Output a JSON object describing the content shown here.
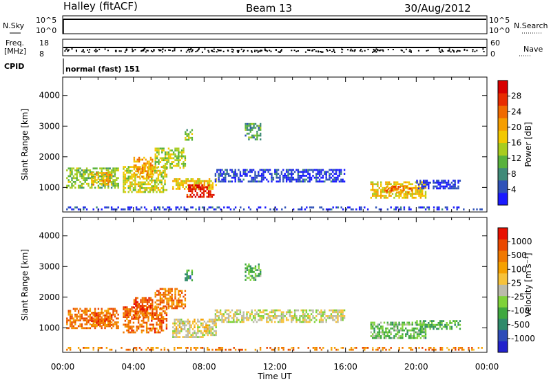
{
  "header": {
    "station": "Halley (fitACF)",
    "beam": "Beam 13",
    "date": "30/Aug/2012"
  },
  "panel_labels": {
    "nsky": "N.Sky",
    "nsearch": "N.Search",
    "freq_line1": "Freq.",
    "freq_line2": "[MHz]",
    "nave": "Nave",
    "cpid": "CPID",
    "cpid_value": "normal (fast) 151",
    "noise_tick_top": "10^5",
    "noise_tick_bottom": "10^0",
    "freq_tick_top": "18",
    "freq_tick_bottom": "8",
    "nave_tick_top": "60",
    "nave_tick_bottom": "0"
  },
  "chart_data": [
    {
      "type": "heatmap",
      "name": "power",
      "ylabel": "Slant Range [km]",
      "xlabel": "Time UT",
      "x_ticks": [
        "00:00",
        "04:00",
        "08:00",
        "12:00",
        "16:00",
        "20:00",
        "00:00"
      ],
      "x_hours": [
        0,
        4,
        8,
        12,
        16,
        20,
        24
      ],
      "y_ticks": [
        1000,
        2000,
        3000,
        4000
      ],
      "ylim": [
        200,
        4600
      ],
      "xlim": [
        0,
        24
      ],
      "colorbar": {
        "label": "Power [dB]",
        "ticks": [
          "4",
          "8",
          "12",
          "16",
          "20",
          "24",
          "28"
        ],
        "colors": [
          "#1a1aff",
          "#2f52b8",
          "#3f8a78",
          "#58b23c",
          "#a8cc1e",
          "#f2c800",
          "#f59e00",
          "#f06a00",
          "#e82c00",
          "#d80000"
        ]
      },
      "features": [
        {
          "t0": 0.2,
          "t1": 3.2,
          "r0": 900,
          "r1": 1650,
          "level": 0.4
        },
        {
          "t0": 1.6,
          "t1": 2.9,
          "r0": 1000,
          "r1": 1500,
          "level": 0.6
        },
        {
          "t0": 3.4,
          "t1": 6.0,
          "r0": 800,
          "r1": 1700,
          "level": 0.5
        },
        {
          "t0": 4.0,
          "t1": 5.2,
          "r0": 1300,
          "r1": 2000,
          "level": 0.65
        },
        {
          "t0": 5.2,
          "t1": 7.0,
          "r0": 1600,
          "r1": 2300,
          "level": 0.45
        },
        {
          "t0": 6.2,
          "t1": 8.8,
          "r0": 900,
          "r1": 1300,
          "level": 0.55
        },
        {
          "t0": 7.0,
          "t1": 8.6,
          "r0": 650,
          "r1": 1100,
          "level": 0.9
        },
        {
          "t0": 6.9,
          "t1": 7.4,
          "r0": 2500,
          "r1": 2900,
          "level": 0.4
        },
        {
          "t0": 8.6,
          "t1": 16.0,
          "r0": 1100,
          "r1": 1600,
          "level": 0.1
        },
        {
          "t0": 10.3,
          "t1": 11.3,
          "r0": 2500,
          "r1": 3100,
          "level": 0.3
        },
        {
          "t0": 17.4,
          "t1": 20.6,
          "r0": 600,
          "r1": 1200,
          "level": 0.55
        },
        {
          "t0": 18.2,
          "t1": 19.8,
          "r0": 750,
          "r1": 1050,
          "level": 0.75
        },
        {
          "t0": 20.0,
          "t1": 22.6,
          "r0": 900,
          "r1": 1250,
          "level": 0.08
        },
        {
          "t0": 0.2,
          "t1": 23.8,
          "r0": 250,
          "r1": 380,
          "level": 0.1
        }
      ]
    },
    {
      "type": "heatmap",
      "name": "velocity",
      "ylabel": "Slant Range [km]",
      "xlabel": "Time UT",
      "x_ticks": [
        "00:00",
        "04:00",
        "08:00",
        "12:00",
        "16:00",
        "20:00",
        "00:00"
      ],
      "x_hours": [
        0,
        4,
        8,
        12,
        16,
        20,
        24
      ],
      "y_ticks": [
        1000,
        2000,
        3000,
        4000
      ],
      "ylim": [
        200,
        4600
      ],
      "xlim": [
        0,
        24
      ],
      "colorbar": {
        "label": "Velocity [m s⁻¹]",
        "ticks": [
          "1000",
          "500",
          "100",
          "25",
          "-25",
          "-100",
          "-500",
          "-1000"
        ],
        "colors": [
          "#2222cc",
          "#2e4cb8",
          "#2f8a6a",
          "#3fa83f",
          "#7fd23a",
          "#bbbbaa",
          "#f6c23a",
          "#f5a000",
          "#f07800",
          "#ea4800",
          "#e81000"
        ]
      },
      "features": [
        {
          "t0": 0.2,
          "t1": 3.2,
          "r0": 900,
          "r1": 1650,
          "level": 0.78
        },
        {
          "t0": 1.6,
          "t1": 2.9,
          "r0": 1000,
          "r1": 1500,
          "level": 0.82
        },
        {
          "t0": 3.4,
          "t1": 6.0,
          "r0": 800,
          "r1": 1700,
          "level": 0.8
        },
        {
          "t0": 4.0,
          "t1": 5.2,
          "r0": 1300,
          "r1": 2000,
          "level": 0.84
        },
        {
          "t0": 5.2,
          "t1": 7.0,
          "r0": 1600,
          "r1": 2300,
          "level": 0.78
        },
        {
          "t0": 6.2,
          "t1": 8.8,
          "r0": 650,
          "r1": 1300,
          "level": 0.55
        },
        {
          "t0": 6.9,
          "t1": 7.4,
          "r0": 2500,
          "r1": 2900,
          "level": 0.3
        },
        {
          "t0": 8.6,
          "t1": 16.0,
          "r0": 1100,
          "r1": 1600,
          "level": 0.5
        },
        {
          "t0": 10.3,
          "t1": 11.3,
          "r0": 2500,
          "r1": 3100,
          "level": 0.35
        },
        {
          "t0": 17.4,
          "t1": 20.6,
          "r0": 600,
          "r1": 1200,
          "level": 0.38
        },
        {
          "t0": 20.0,
          "t1": 22.6,
          "r0": 900,
          "r1": 1250,
          "level": 0.32
        },
        {
          "t0": 0.2,
          "t1": 23.8,
          "r0": 250,
          "r1": 380,
          "level": 0.75
        }
      ]
    }
  ]
}
